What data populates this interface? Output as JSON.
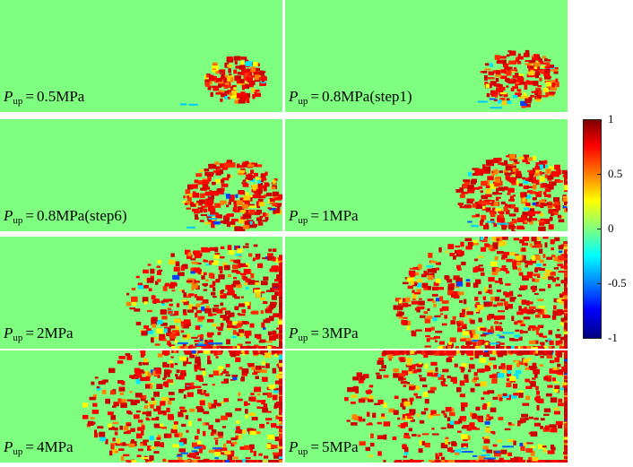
{
  "panels": [
    {
      "var": "P",
      "sub": "up",
      "eq": "=",
      "value": "0.5MPa",
      "spread": 0.08
    },
    {
      "var": "P",
      "sub": "up",
      "eq": "=",
      "value": "0.8MPa(step1)",
      "spread": 0.14
    },
    {
      "var": "P",
      "sub": "up",
      "eq": "=",
      "value": "0.8MPa(step6)",
      "spread": 0.22
    },
    {
      "var": "P",
      "sub": "up",
      "eq": "=",
      "value": "1MPa",
      "spread": 0.28
    },
    {
      "var": "P",
      "sub": "up",
      "eq": "=",
      "value": "2MPa",
      "spread": 0.55
    },
    {
      "var": "P",
      "sub": "up",
      "eq": "=",
      "value": "3MPa",
      "spread": 0.65
    },
    {
      "var": "P",
      "sub": "up",
      "eq": "=",
      "value": "4MPa",
      "spread": 0.8
    },
    {
      "var": "P",
      "sub": "up",
      "eq": "=",
      "value": "5MPa",
      "spread": 0.95
    }
  ],
  "colorbar": {
    "ticks": [
      "1",
      "0.5",
      "0",
      "-0.5",
      "-1"
    ],
    "colors": [
      "#7f0000",
      "#ff0000",
      "#ff8000",
      "#ffff00",
      "#7fff7f",
      "#00ffff",
      "#0080ff",
      "#0000ff",
      "#00007f"
    ]
  },
  "chart_data": {
    "type": "heatmap",
    "title": "",
    "series": [
      {
        "name": "0.5MPa"
      },
      {
        "name": "0.8MPa(step1)"
      },
      {
        "name": "0.8MPa(step6)"
      },
      {
        "name": "1MPa"
      },
      {
        "name": "2MPa"
      },
      {
        "name": "3MPa"
      },
      {
        "name": "4MPa"
      },
      {
        "name": "5MPa"
      }
    ],
    "zlim": [
      -1,
      1
    ],
    "colorbar_ticks": [
      1,
      0.5,
      0,
      -0.5,
      -1
    ],
    "background_value": 0
  }
}
